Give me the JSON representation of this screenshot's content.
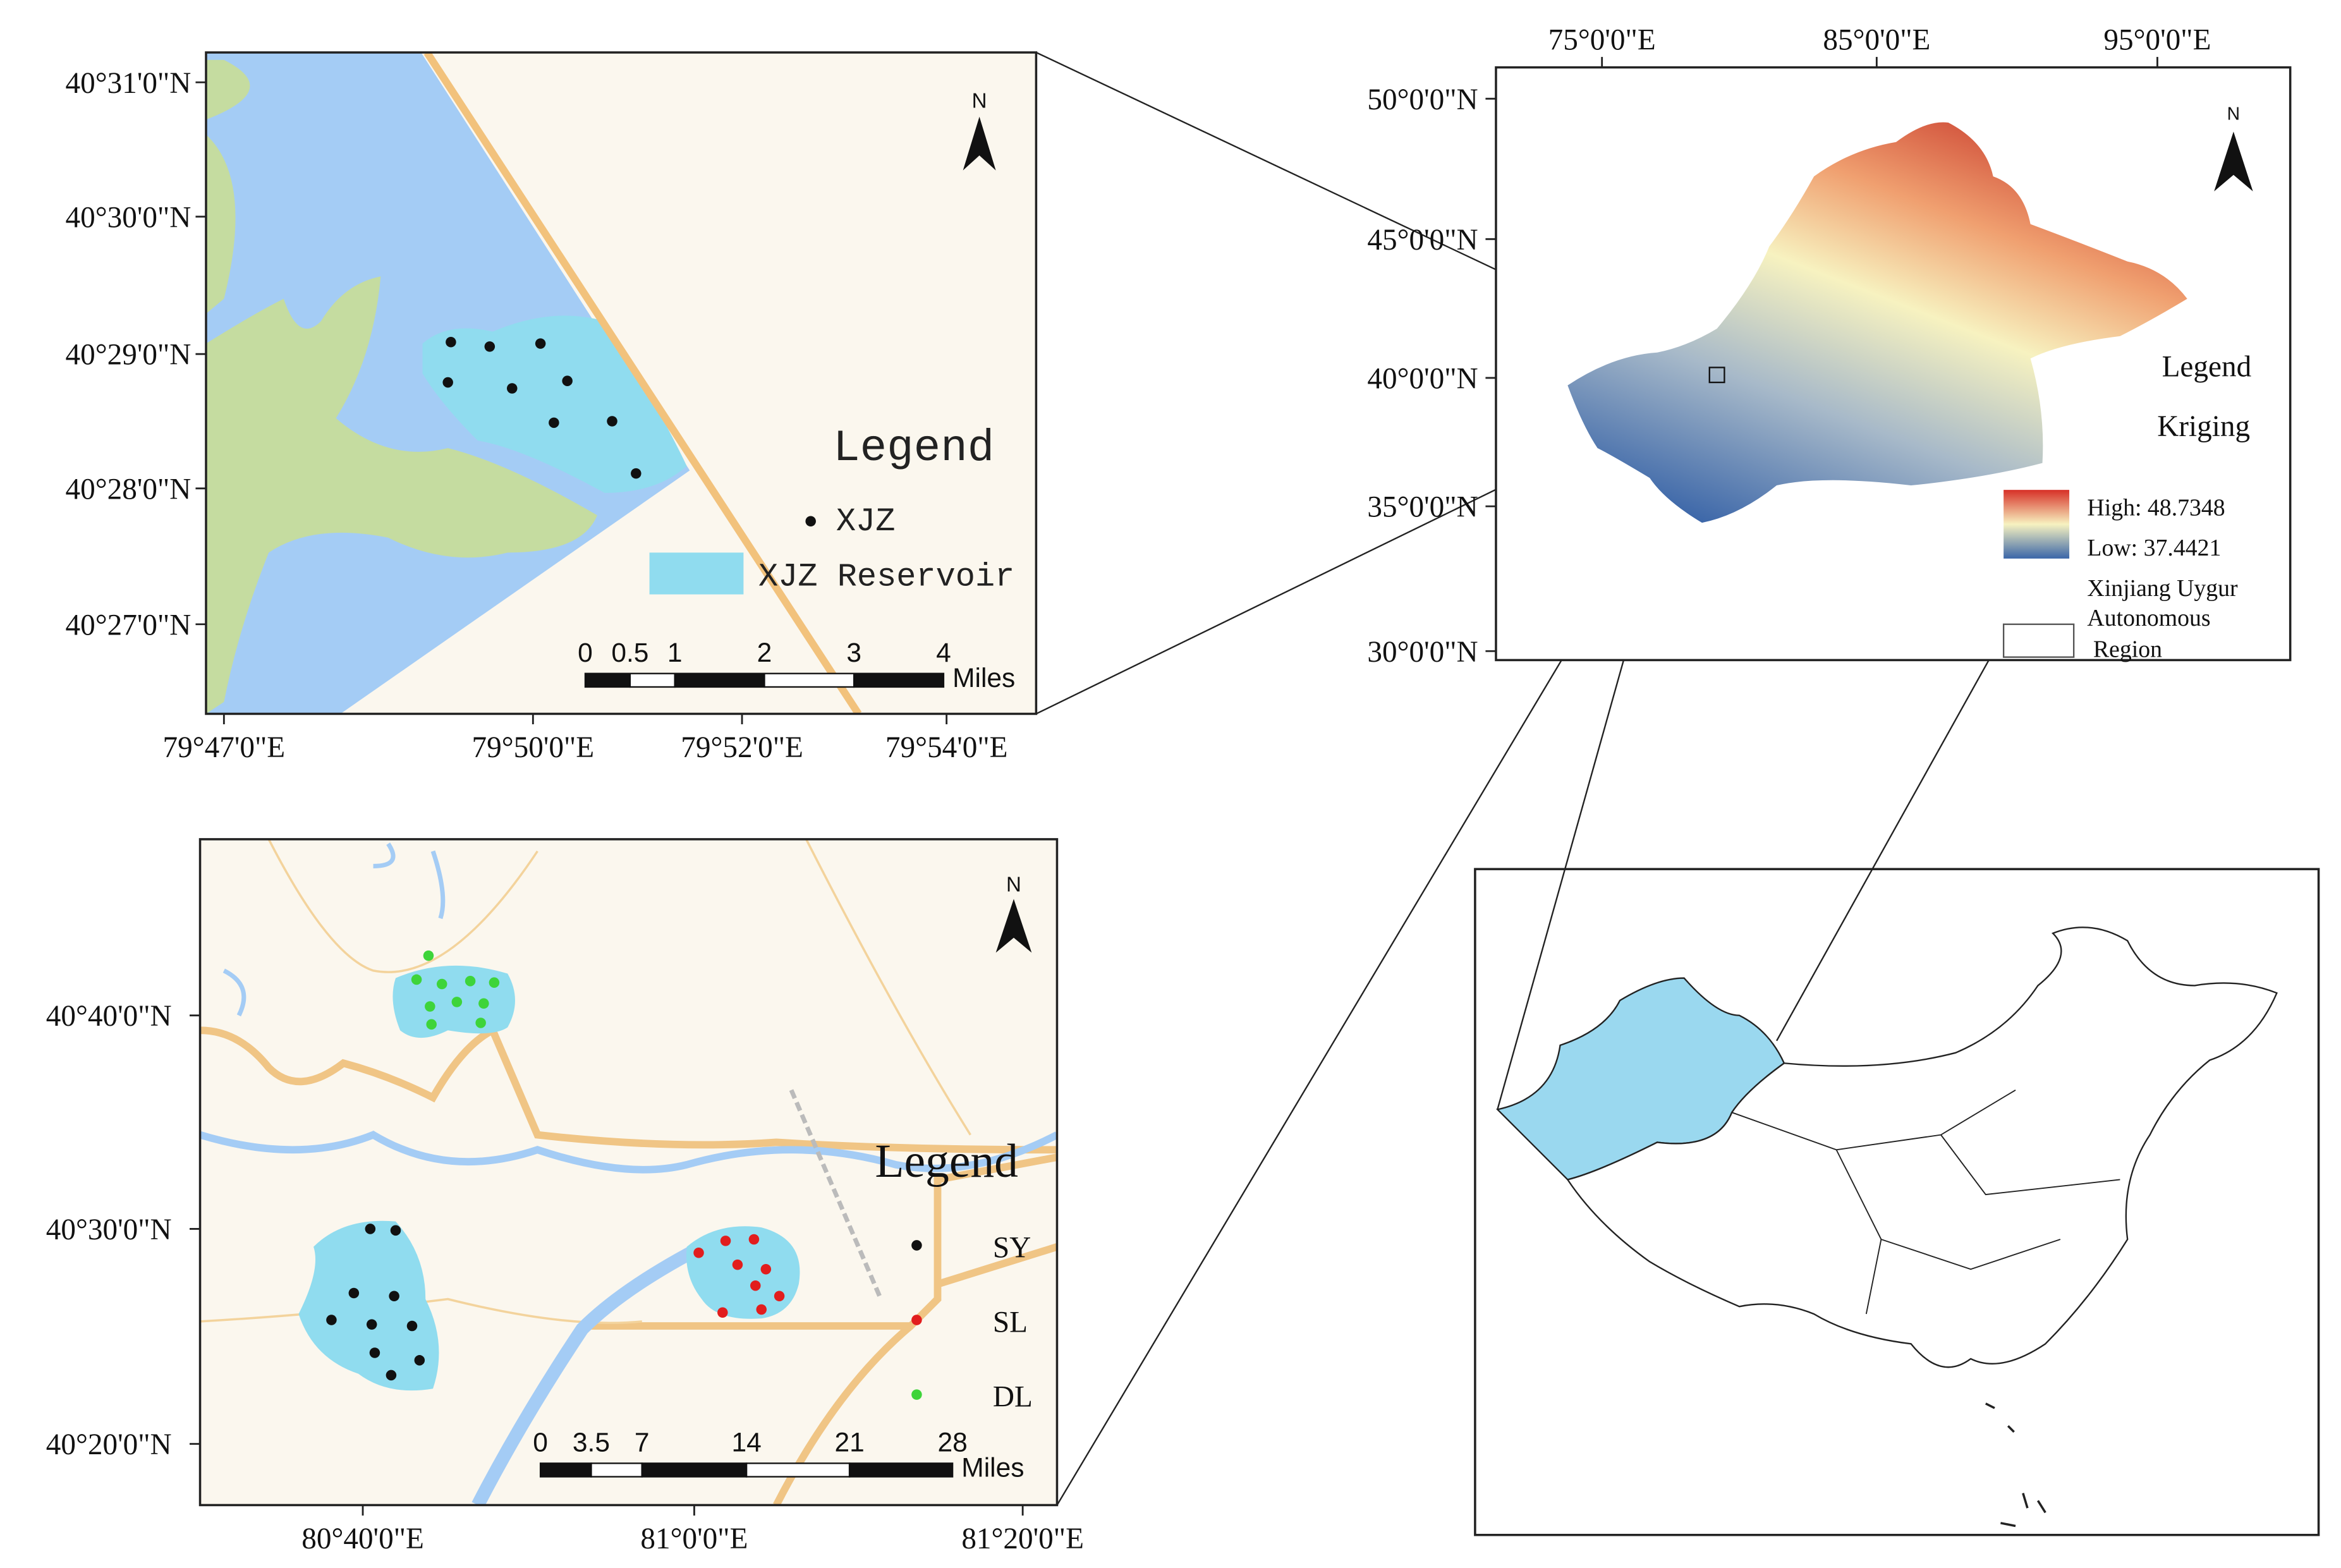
{
  "top_left": {
    "lat_labels": [
      "40°31'0\"N",
      "40°30'0\"N",
      "40°29'0\"N",
      "40°28'0\"N",
      "40°27'0\"N"
    ],
    "lon_labels": [
      "79°47'0\"E",
      "79°50'0\"E",
      "79°52'0\"E",
      "79°54'0\"E"
    ],
    "north": "N",
    "legend": {
      "title": "Legend",
      "items": [
        "XJZ",
        "XJZ Reservoir"
      ]
    },
    "scale": {
      "ticks": [
        "0",
        "0.5",
        "1",
        "2",
        "3",
        "4"
      ],
      "unit": "Miles"
    }
  },
  "top_right": {
    "lon_labels": [
      "75°0'0\"E",
      "85°0'0\"E",
      "95°0'0\"E"
    ],
    "lat_labels": [
      "50°0'0\"N",
      "45°0'0\"N",
      "40°0'0\"N",
      "35°0'0\"N",
      "30°0'0\"N"
    ],
    "north": "N",
    "legend": {
      "title": "Legend",
      "subtitle": "Kriging",
      "high": "High: 48.7348",
      "low": "Low: 37.4421",
      "region": [
        "Xinjiang Uygur",
        "Autonomous",
        "Region"
      ]
    }
  },
  "bottom_left": {
    "lat_labels": [
      "40°40'0\"N",
      "40°30'0\"N",
      "40°20'0\"N"
    ],
    "lon_labels": [
      "80°40'0\"E",
      "81°0'0\"E",
      "81°20'0\"E"
    ],
    "north": "N",
    "legend": {
      "title": "Legend",
      "items": [
        "SY",
        "SL",
        "DL"
      ]
    },
    "scale": {
      "ticks": [
        "0",
        "3.5",
        "7",
        "14",
        "21",
        "28"
      ],
      "unit": "Miles"
    }
  }
}
